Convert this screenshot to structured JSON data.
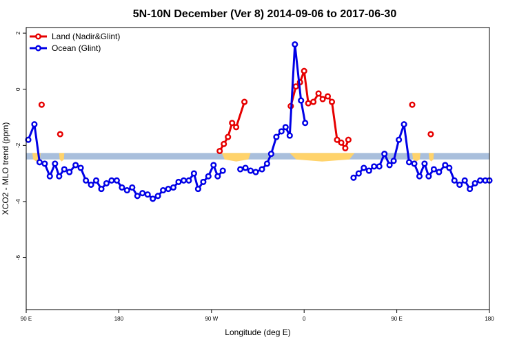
{
  "chart_data": {
    "type": "line",
    "title": "5N-10N December (Ver 8)   2014-09-06 to 2017-06-30",
    "xlabel": "Longitude (deg E)",
    "ylabel": "XCO2 - MLO trend (ppm)",
    "x_ticks": [
      {
        "value": 0,
        "label": "90 E"
      },
      {
        "value": 90,
        "label": "180"
      },
      {
        "value": 180,
        "label": "90 W"
      },
      {
        "value": 270,
        "label": "0"
      },
      {
        "value": 360,
        "label": "90 E"
      },
      {
        "value": 450,
        "label": "180"
      }
    ],
    "y_ticks": [
      {
        "value": 2,
        "label": "2"
      },
      {
        "value": 0,
        "label": "0"
      },
      {
        "value": -2,
        "label": "-2"
      },
      {
        "value": -4,
        "label": "-4"
      },
      {
        "value": -6,
        "label": "-6"
      }
    ],
    "xlim": [
      0,
      450
    ],
    "ylim": [
      -7.85,
      2.2
    ],
    "band": {
      "ymin": -2.5,
      "ymax": -2.27
    },
    "colors": {
      "land": "#e60000",
      "ocean": "#0000e6",
      "band": "#a9bfdc",
      "landmass": "#ffd36b"
    },
    "legend": [
      {
        "name": "Land (Nadir&Glint)",
        "color": "#e60000"
      },
      {
        "name": "Ocean (Glint)",
        "color": "#0000e6"
      }
    ],
    "series": [
      {
        "name": "Land (Nadir&Glint)",
        "color": "#e60000",
        "segments": [
          [
            [
              15,
              -0.55
            ]
          ],
          [
            [
              33,
              -1.6
            ]
          ],
          [
            [
              188,
              -2.2
            ],
            [
              192,
              -1.95
            ],
            [
              196,
              -1.7
            ],
            [
              200,
              -1.2
            ],
            [
              204,
              -1.35
            ],
            [
              212,
              -0.45
            ]
          ],
          [
            [
              257,
              -0.6
            ],
            [
              262,
              0.1
            ],
            [
              266,
              0.25
            ],
            [
              270,
              0.65
            ],
            [
              274,
              -0.5
            ],
            [
              279,
              -0.45
            ],
            [
              284,
              -0.15
            ],
            [
              288,
              -0.35
            ],
            [
              293,
              -0.25
            ],
            [
              297,
              -0.45
            ],
            [
              302,
              -1.8
            ],
            [
              306,
              -1.9
            ],
            [
              310,
              -2.1
            ],
            [
              313,
              -1.8
            ]
          ],
          [
            [
              375,
              -0.55
            ]
          ],
          [
            [
              393,
              -1.6
            ]
          ]
        ]
      },
      {
        "name": "Ocean (Glint)",
        "color": "#0000e6",
        "segments": [
          [
            [
              2,
              -1.8
            ],
            [
              8,
              -1.25
            ],
            [
              13,
              -2.6
            ],
            [
              18,
              -2.65
            ],
            [
              23,
              -3.1
            ],
            [
              28,
              -2.65
            ],
            [
              32,
              -3.1
            ],
            [
              37,
              -2.85
            ],
            [
              42,
              -2.95
            ],
            [
              48,
              -2.7
            ],
            [
              53,
              -2.8
            ],
            [
              58,
              -3.25
            ],
            [
              63,
              -3.4
            ],
            [
              68,
              -3.25
            ],
            [
              73,
              -3.55
            ],
            [
              78,
              -3.35
            ],
            [
              83,
              -3.25
            ],
            [
              88,
              -3.25
            ],
            [
              93,
              -3.5
            ],
            [
              98,
              -3.6
            ],
            [
              103,
              -3.5
            ],
            [
              108,
              -3.8
            ],
            [
              113,
              -3.7
            ],
            [
              118,
              -3.75
            ],
            [
              123,
              -3.9
            ],
            [
              128,
              -3.8
            ],
            [
              133,
              -3.6
            ],
            [
              138,
              -3.55
            ],
            [
              143,
              -3.5
            ],
            [
              148,
              -3.3
            ],
            [
              153,
              -3.25
            ],
            [
              158,
              -3.25
            ],
            [
              163,
              -3.0
            ],
            [
              167,
              -3.55
            ],
            [
              172,
              -3.3
            ],
            [
              177,
              -3.1
            ],
            [
              182,
              -2.7
            ],
            [
              186,
              -3.1
            ],
            [
              191,
              -2.9
            ]
          ],
          [
            [
              208,
              -2.85
            ],
            [
              213,
              -2.8
            ],
            [
              218,
              -2.9
            ],
            [
              223,
              -2.95
            ],
            [
              229,
              -2.85
            ],
            [
              234,
              -2.65
            ],
            [
              238,
              -2.3
            ],
            [
              243,
              -1.7
            ],
            [
              248,
              -1.5
            ],
            [
              252,
              -1.35
            ],
            [
              256,
              -1.65
            ],
            [
              261,
              1.6
            ],
            [
              267,
              -0.4
            ],
            [
              271,
              -1.2
            ]
          ],
          [
            [
              318,
              -3.15
            ],
            [
              323,
              -3.0
            ],
            [
              328,
              -2.8
            ],
            [
              333,
              -2.9
            ],
            [
              338,
              -2.75
            ],
            [
              343,
              -2.75
            ],
            [
              348,
              -2.3
            ],
            [
              353,
              -2.7
            ],
            [
              357,
              -2.55
            ],
            [
              362,
              -1.8
            ],
            [
              367,
              -1.25
            ],
            [
              372,
              -2.6
            ],
            [
              377,
              -2.65
            ],
            [
              382,
              -3.1
            ],
            [
              387,
              -2.65
            ],
            [
              391,
              -3.1
            ],
            [
              396,
              -2.85
            ],
            [
              401,
              -2.95
            ],
            [
              407,
              -2.7
            ],
            [
              411,
              -2.8
            ],
            [
              416,
              -3.25
            ],
            [
              421,
              -3.4
            ],
            [
              426,
              -3.25
            ],
            [
              431,
              -3.55
            ],
            [
              436,
              -3.35
            ],
            [
              441,
              -3.25
            ],
            [
              446,
              -3.25
            ],
            [
              450,
              -3.25
            ]
          ]
        ]
      }
    ],
    "land_patches": [
      {
        "x0": 6,
        "x1": 14
      },
      {
        "x0": 32,
        "x1": 37
      },
      {
        "x0": 190,
        "x1": 218
      },
      {
        "x0": 256,
        "x1": 319
      },
      {
        "x0": 375,
        "x1": 383
      },
      {
        "x0": 391,
        "x1": 396
      }
    ]
  }
}
